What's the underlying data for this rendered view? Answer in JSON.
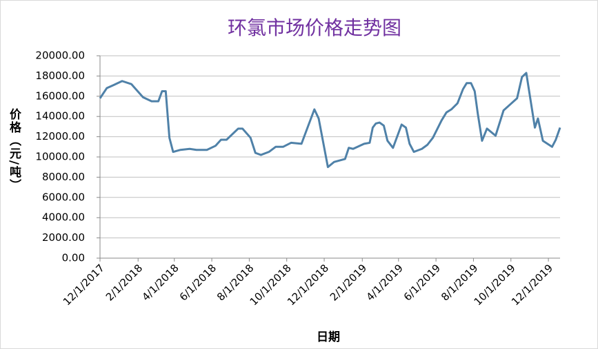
{
  "chart_data": {
    "type": "line",
    "title": "环氯市场价格走势图",
    "x_label": "日期",
    "y_label": "价格（元/吨）",
    "x": [
      "12/1/2017",
      "12/12/2017",
      "12/23/2017",
      "1/6/2018",
      "1/21/2018",
      "2/9/2018",
      "2/23/2018",
      "3/6/2018",
      "3/12/2018",
      "3/18/2018",
      "3/24/2018",
      "3/30/2018",
      "4/11/2018",
      "4/26/2018",
      "5/7/2018",
      "5/24/2018",
      "6/7/2018",
      "6/16/2018",
      "6/25/2018",
      "7/14/2018",
      "7/21/2018",
      "8/3/2018",
      "8/11/2018",
      "8/20/2018",
      "9/2/2018",
      "9/13/2018",
      "9/25/2018",
      "10/8/2018",
      "10/25/2018",
      "11/15/2018",
      "11/22/2018",
      "12/7/2018",
      "12/17/2018",
      "1/4/2019",
      "1/10/2019",
      "1/17/2019",
      "2/4/2019",
      "2/13/2019",
      "2/18/2019",
      "2/23/2019",
      "3/1/2019",
      "3/8/2019",
      "3/14/2019",
      "3/23/2019",
      "4/6/2019",
      "4/13/2019",
      "4/19/2019",
      "4/26/2019",
      "5/9/2019",
      "5/18/2019",
      "5/27/2019",
      "6/10/2019",
      "6/18/2019",
      "6/26/2019",
      "7/6/2019",
      "7/15/2019",
      "7/21/2019",
      "7/28/2019",
      "8/3/2019",
      "8/8/2019",
      "8/15/2019",
      "8/23/2019",
      "9/6/2019",
      "9/19/2019",
      "9/30/2019",
      "10/11/2019",
      "10/19/2019",
      "10/26/2019",
      "11/9/2019",
      "11/14/2019",
      "11/22/2019",
      "12/7/2019",
      "12/13/2019",
      "12/20/2019"
    ],
    "series": [
      {
        "color": "#4f81a8",
        "values": [
          15800,
          16800,
          17100,
          17500,
          17200,
          15900,
          15500,
          15500,
          16500,
          16500,
          11900,
          10500,
          10700,
          10800,
          10700,
          10700,
          11100,
          11700,
          11700,
          12800,
          12800,
          11900,
          10400,
          10200,
          10500,
          11000,
          11000,
          11400,
          11300,
          14700,
          13800,
          9000,
          9500,
          9800,
          10900,
          10800,
          11300,
          11400,
          12900,
          13300,
          13400,
          13100,
          11600,
          10900,
          13200,
          12900,
          11300,
          10500,
          10800,
          11200,
          11900,
          13600,
          14400,
          14700,
          15300,
          16700,
          17300,
          17300,
          16500,
          14300,
          11600,
          12800,
          12100,
          14600,
          15200,
          15800,
          17900,
          18300,
          12900,
          13800,
          11600,
          11000,
          11700,
          12900
        ]
      }
    ],
    "xlim": [
      "12/1/2017",
      "12/20/2019"
    ],
    "xticks": [
      "12/1/2017",
      "2/1/2018",
      "4/1/2018",
      "6/1/2018",
      "8/1/2018",
      "10/1/2018",
      "12/1/2018",
      "2/1/2019",
      "4/1/2019",
      "6/1/2019",
      "8/1/2019",
      "10/1/2019",
      "12/1/2019"
    ],
    "ylim": [
      0,
      20000
    ],
    "yticks": [
      {
        "value": 0,
        "label": "0.00"
      },
      {
        "value": 2000,
        "label": "2000.00"
      },
      {
        "value": 4000,
        "label": "4000.00"
      },
      {
        "value": 6000,
        "label": "6000.00"
      },
      {
        "value": 8000,
        "label": "8000.00"
      },
      {
        "value": 10000,
        "label": "10000.00"
      },
      {
        "value": 12000,
        "label": "12000.00"
      },
      {
        "value": 14000,
        "label": "14000.00"
      },
      {
        "value": 16000,
        "label": "16000.00"
      },
      {
        "value": 18000,
        "label": "18000.00"
      },
      {
        "value": 20000,
        "label": "20000.00"
      }
    ],
    "grid": true
  }
}
